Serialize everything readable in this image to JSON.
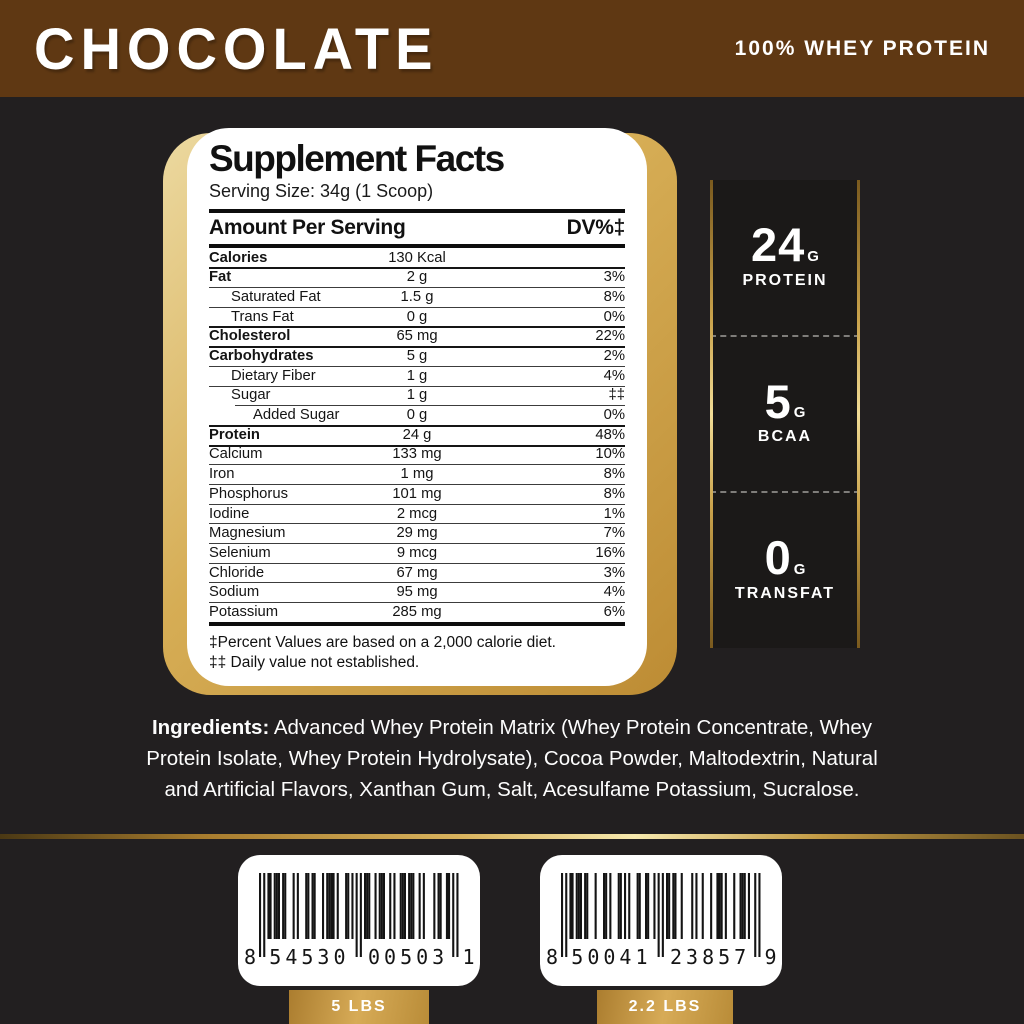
{
  "header": {
    "flavor": "CHOCOLATE",
    "product": "100% WHEY PROTEIN"
  },
  "supplement_facts": {
    "title": "Supplement Facts",
    "serving_size": "Serving Size: 34g (1 Scoop)",
    "columns": {
      "amount_header": "Amount Per Serving",
      "dv_header": "DV%‡"
    },
    "rows": [
      {
        "name": "Calories",
        "amount": "130 Kcal",
        "dv": "",
        "bold": true,
        "indent": 0,
        "sep": "none"
      },
      {
        "name": "Fat",
        "amount": "2 g",
        "dv": "3%",
        "bold": true,
        "indent": 0,
        "sep": "med"
      },
      {
        "name": "Saturated Fat",
        "amount": "1.5 g",
        "dv": "8%",
        "bold": false,
        "indent": 1,
        "sep": "thin"
      },
      {
        "name": "Trans Fat",
        "amount": "0 g",
        "dv": "0%",
        "bold": false,
        "indent": 1,
        "sep": "thin"
      },
      {
        "name": "Cholesterol",
        "amount": "65 mg",
        "dv": "22%",
        "bold": true,
        "indent": 0,
        "sep": "med"
      },
      {
        "name": "Carbohydrates",
        "amount": "5 g",
        "dv": "2%",
        "bold": true,
        "indent": 0,
        "sep": "med"
      },
      {
        "name": "Dietary Fiber",
        "amount": "1 g",
        "dv": "4%",
        "bold": false,
        "indent": 1,
        "sep": "thin"
      },
      {
        "name": "Sugar",
        "amount": "1 g",
        "dv": "‡‡",
        "bold": false,
        "indent": 1,
        "sep": "thin"
      },
      {
        "name": "Added Sugar",
        "amount": "0 g",
        "dv": "0%",
        "bold": false,
        "indent": 2,
        "sep": "ind"
      },
      {
        "name": "Protein",
        "amount": "24 g",
        "dv": "48%",
        "bold": true,
        "indent": 0,
        "sep": "med"
      },
      {
        "name": "Calcium",
        "amount": "133 mg",
        "dv": "10%",
        "bold": false,
        "indent": 0,
        "sep": "med"
      },
      {
        "name": "Iron",
        "amount": "1 mg",
        "dv": "8%",
        "bold": false,
        "indent": 0,
        "sep": "thin"
      },
      {
        "name": "Phosphorus",
        "amount": "101 mg",
        "dv": "8%",
        "bold": false,
        "indent": 0,
        "sep": "thin"
      },
      {
        "name": "Iodine",
        "amount": "2 mcg",
        "dv": "1%",
        "bold": false,
        "indent": 0,
        "sep": "thin"
      },
      {
        "name": "Magnesium",
        "amount": "29 mg",
        "dv": "7%",
        "bold": false,
        "indent": 0,
        "sep": "thin"
      },
      {
        "name": "Selenium",
        "amount": "9 mcg",
        "dv": "16%",
        "bold": false,
        "indent": 0,
        "sep": "thin"
      },
      {
        "name": "Chloride",
        "amount": "67 mg",
        "dv": "3%",
        "bold": false,
        "indent": 0,
        "sep": "thin"
      },
      {
        "name": "Sodium",
        "amount": "95 mg",
        "dv": "4%",
        "bold": false,
        "indent": 0,
        "sep": "thin"
      },
      {
        "name": "Potassium",
        "amount": "285 mg",
        "dv": "6%",
        "bold": false,
        "indent": 0,
        "sep": "thin"
      }
    ],
    "footnotes": [
      "‡Percent Values are based on a 2,000 calorie diet.",
      "‡‡ Daily value not established."
    ]
  },
  "highlights": [
    {
      "value": "24",
      "unit": "G",
      "label": "PROTEIN"
    },
    {
      "value": "5",
      "unit": "G",
      "label": "BCAA"
    },
    {
      "value": "0",
      "unit": "G",
      "label": "TRANSFAT"
    }
  ],
  "ingredients": {
    "label": "Ingredients:",
    "text": " Advanced Whey Protein Matrix (Whey Protein Concentrate, Whey Protein Isolate, Whey Protein Hydrolysate), Cocoa Powder, Maltodextrin, Natural and Artificial Flavors, Xanthan Gum, Salt, Acesulfame Potassium, Sucralose."
  },
  "barcodes": [
    {
      "digits": "854530005031",
      "groups": [
        "8",
        "54530",
        "00503",
        "1"
      ],
      "size": "5 LBS"
    },
    {
      "digits": "850041238579",
      "groups": [
        "8",
        "50041",
        "23857",
        "9"
      ],
      "size": "2.2 LBS"
    }
  ],
  "colors": {
    "bg": "#221f20",
    "brown": "#5f3813",
    "panel_bg": "#1b1918",
    "gold_light": "#ecd9a0",
    "gold_dark": "#bd8c34"
  }
}
